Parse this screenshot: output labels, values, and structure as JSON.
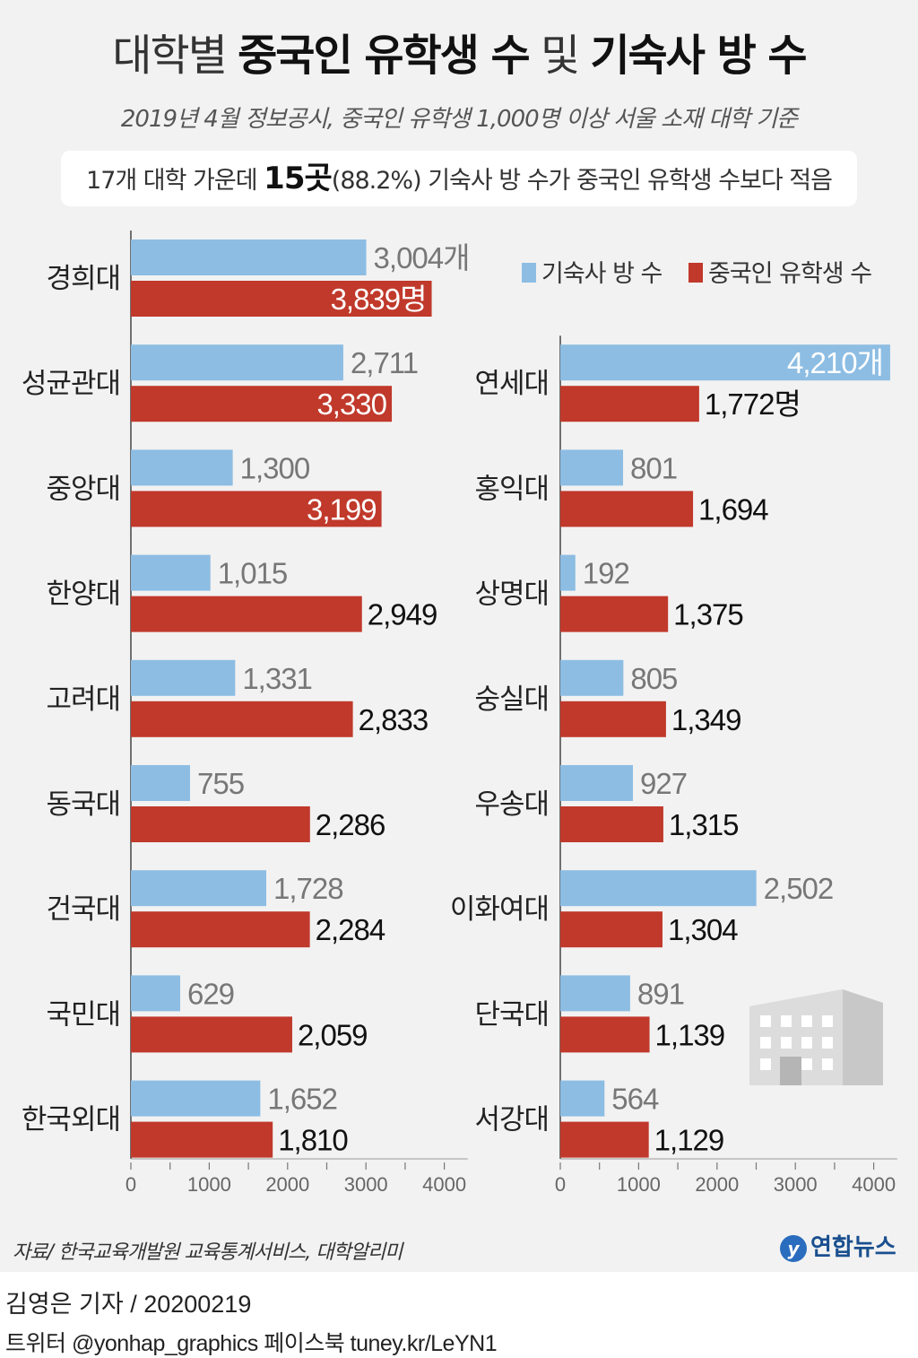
{
  "header": {
    "title_prefix": "대학별 ",
    "title_bold1": "중국인 유학생 수",
    "title_mid": " 및 ",
    "title_bold2": "기숙사 방 수",
    "subtitle": "2019년 4월 정보공시, 중국인 유학생 1,000명 이상 서울 소재 대학 기준",
    "summary_prefix": "17개 대학 가운데 ",
    "summary_bold": "15곳",
    "summary_suffix": "(88.2%) 기숙사 방 수가 중국인 유학생 수보다 적음"
  },
  "colors": {
    "dorm": "#8dbde3",
    "students": "#c0392b",
    "panel": "#f2f2f2",
    "label_gray": "#777777"
  },
  "chart_data": {
    "type": "bar",
    "orientation": "horizontal",
    "title": "대학별 중국인 유학생 수 및 기숙사 방 수",
    "units": {
      "dorm": "개",
      "students": "명"
    },
    "legend": {
      "position": "top-right",
      "entries": [
        "기숙사 방 수",
        "중국인 유학생 수"
      ]
    },
    "xlim": [
      0,
      4210
    ],
    "x_ticks": [
      "0",
      "1000",
      "2000",
      "3000",
      "4000"
    ],
    "panels": [
      {
        "categories": [
          "경희대",
          "성균관대",
          "중앙대",
          "한양대",
          "고려대",
          "동국대",
          "건국대",
          "국민대",
          "한국외대"
        ],
        "series": [
          {
            "name": "기숙사 방 수",
            "values": [
              3004,
              2711,
              1300,
              1015,
              1331,
              755,
              1728,
              629,
              1652
            ],
            "labels": [
              "3,004개",
              "2,711",
              "1,300",
              "1,015",
              "1,331",
              "755",
              "1,728",
              "629",
              "1,652"
            ]
          },
          {
            "name": "중국인 유학생 수",
            "values": [
              3839,
              3330,
              3199,
              2949,
              2833,
              2286,
              2284,
              2059,
              1810
            ],
            "labels": [
              "3,839명",
              "3,330",
              "3,199",
              "2,949",
              "2,833",
              "2,286",
              "2,284",
              "2,059",
              "1,810"
            ]
          }
        ]
      },
      {
        "categories": [
          "연세대",
          "홍익대",
          "상명대",
          "숭실대",
          "우송대",
          "이화여대",
          "단국대",
          "서강대"
        ],
        "series": [
          {
            "name": "기숙사 방 수",
            "values": [
              4210,
              801,
              192,
              805,
              927,
              2502,
              891,
              564
            ],
            "labels": [
              "4,210개",
              "801",
              "192",
              "805",
              "927",
              "2,502",
              "891",
              "564"
            ]
          },
          {
            "name": "중국인 유학생 수",
            "values": [
              1772,
              1694,
              1375,
              1349,
              1315,
              1304,
              1139,
              1129
            ],
            "labels": [
              "1,772명",
              "1,694",
              "1,375",
              "1,349",
              "1,315",
              "1,304",
              "1,139",
              "1,129"
            ]
          }
        ]
      }
    ]
  },
  "footer": {
    "source": "자료/ 한국교육개발원 교육통계서비스, 대학알리미",
    "logo_text": "연합뉴스",
    "byline": "김영은 기자 / 20200219",
    "social": "트위터 @yonhap_graphics  페이스북 tuney.kr/LeYN1"
  }
}
